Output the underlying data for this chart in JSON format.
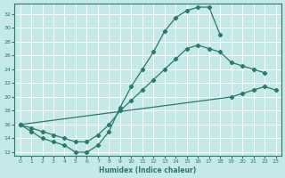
{
  "xlabel": "Humidex (Indice chaleur)",
  "bg_color": "#c5e8e8",
  "line_color": "#2a7a6a",
  "grid_color": "#ffffff",
  "xlim": [
    -0.5,
    23.5
  ],
  "ylim": [
    11.5,
    33.5
  ],
  "yticks": [
    12,
    14,
    16,
    18,
    20,
    22,
    24,
    26,
    28,
    30,
    32
  ],
  "xticks": [
    0,
    1,
    2,
    3,
    4,
    5,
    6,
    7,
    8,
    9,
    10,
    11,
    12,
    13,
    14,
    15,
    16,
    17,
    18,
    19,
    20,
    21,
    22,
    23
  ],
  "curve1_x": [
    0,
    1,
    2,
    3,
    4,
    5,
    6,
    7,
    8,
    9,
    10,
    11,
    12,
    13,
    14,
    15,
    16,
    17,
    18
  ],
  "curve1_y": [
    16.0,
    15.0,
    14.0,
    13.5,
    13.0,
    12.0,
    12.0,
    13.0,
    15.0,
    18.5,
    21.5,
    24.0,
    26.5,
    29.5,
    31.5,
    32.5,
    33.0,
    33.0,
    29.0
  ],
  "curve2_x": [
    0,
    1,
    2,
    3,
    4,
    5,
    6,
    7,
    8,
    9,
    10,
    11,
    12,
    13,
    14,
    15,
    16,
    17,
    18,
    19,
    20,
    21,
    22
  ],
  "curve2_y": [
    16.0,
    15.5,
    15.0,
    14.5,
    14.0,
    13.5,
    13.5,
    14.5,
    16.0,
    18.0,
    19.5,
    21.0,
    22.5,
    24.0,
    25.5,
    27.0,
    27.5,
    27.0,
    26.5,
    25.0,
    24.5,
    24.0,
    23.5
  ],
  "curve3_x": [
    0,
    19,
    20,
    21,
    22,
    23
  ],
  "curve3_y": [
    16.0,
    20.0,
    20.5,
    21.0,
    21.5,
    21.0
  ]
}
